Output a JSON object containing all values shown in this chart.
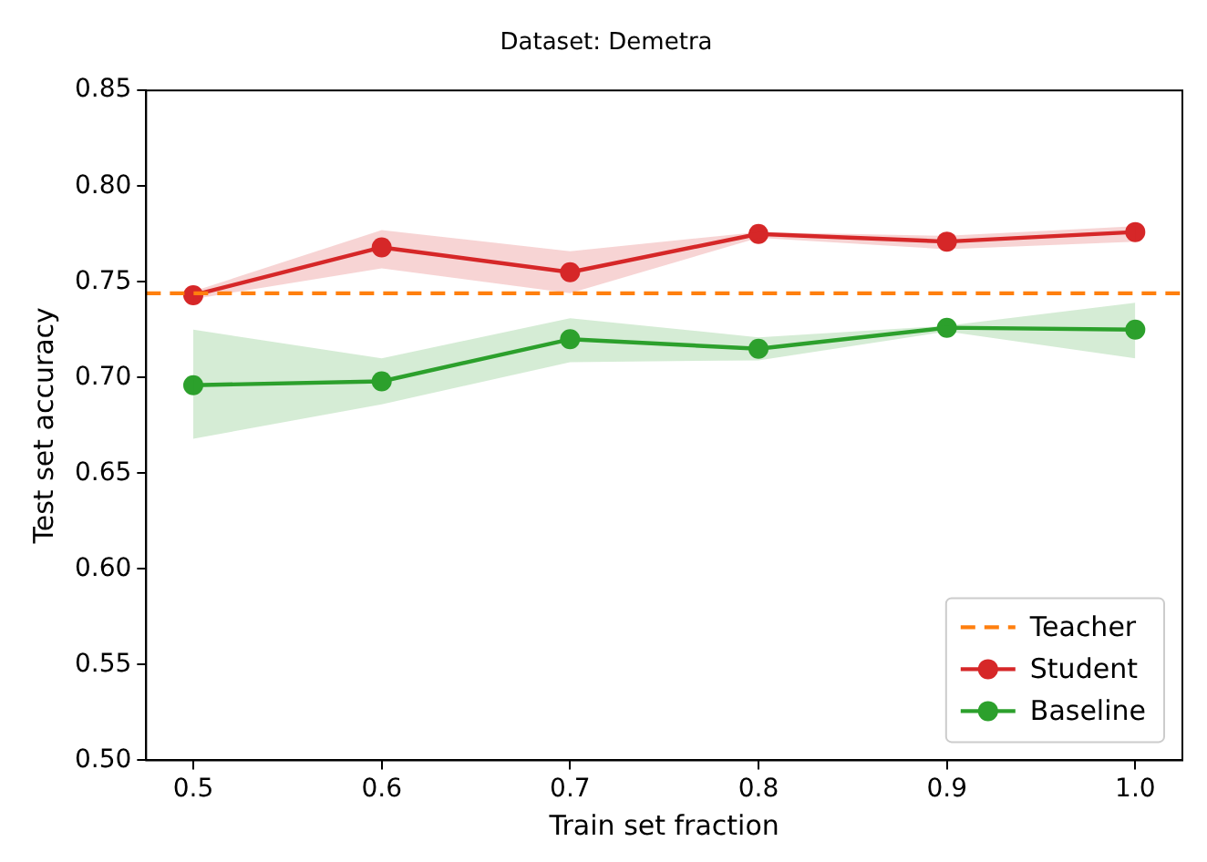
{
  "chart_data": {
    "type": "line",
    "title": "Dataset: Demetra",
    "xlabel": "Train set fraction",
    "ylabel": "Test set accuracy",
    "x": [
      0.5,
      0.6,
      0.7,
      0.8,
      0.9,
      1.0
    ],
    "series": [
      {
        "name": "Student",
        "color": "#d62728",
        "values": [
          0.743,
          0.768,
          0.755,
          0.775,
          0.771,
          0.776
        ],
        "lower": [
          0.741,
          0.757,
          0.744,
          0.773,
          0.767,
          0.771
        ],
        "upper": [
          0.745,
          0.777,
          0.766,
          0.776,
          0.774,
          0.779
        ]
      },
      {
        "name": "Baseline",
        "color": "#2ca02c",
        "values": [
          0.696,
          0.698,
          0.72,
          0.715,
          0.726,
          0.725
        ],
        "lower": [
          0.668,
          0.686,
          0.708,
          0.709,
          0.724,
          0.71
        ],
        "upper": [
          0.725,
          0.71,
          0.731,
          0.721,
          0.727,
          0.739
        ]
      }
    ],
    "ref_lines": [
      {
        "axis": "y",
        "value": 0.744,
        "label": "Teacher",
        "color": "#ff7f0e",
        "line_style": "dashed"
      }
    ],
    "xlim": [
      0.475,
      1.025
    ],
    "xticks": [
      0.5,
      0.6,
      0.7,
      0.8,
      0.9,
      {
        "value": 1,
        "label": "1.0"
      }
    ],
    "ylim": [
      0.5,
      0.85
    ],
    "yticks": [
      {
        "value": 0.5,
        "label": "0.50"
      },
      0.55,
      {
        "value": 0.6,
        "label": "0.60"
      },
      0.65,
      {
        "value": 0.7,
        "label": "0.70"
      },
      0.75,
      {
        "value": 0.8,
        "label": "0.80"
      },
      0.85
    ],
    "grid": false,
    "legend": "bottom right",
    "marker": "circle",
    "line_style": "solid"
  }
}
